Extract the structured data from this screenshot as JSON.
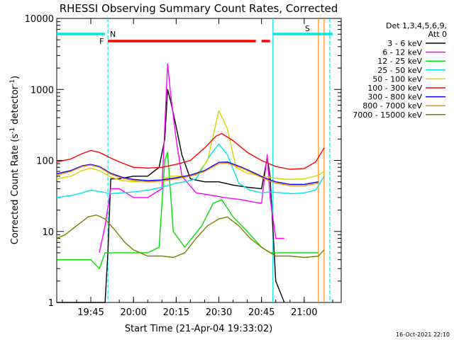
{
  "chart_data": {
    "type": "line",
    "title": "RHESSI Observing Summary Count Rates, Corrected",
    "xlabel": "Start Time (21-Apr-04 19:33:02)",
    "ylabel_main": "Corrected Count Rate (s",
    "ylabel_sup": "-1",
    "ylabel_rest": " detector",
    "ylabel_sup2": "-1",
    "ylabel_end": ")",
    "footer_timestamp": "16-Oct-2021 22:10",
    "y_scale": "log",
    "ylim": [
      1,
      10000
    ],
    "xlim": [
      "19:33:02",
      "21:13:00"
    ],
    "x_ticks": [
      "19:45",
      "20:00",
      "20:15",
      "20:30",
      "20:45",
      "21:00"
    ],
    "y_ticks": [
      "1",
      "10",
      "100",
      "1000",
      "10000"
    ],
    "legend_header": [
      "Det 1,3,4,5,6,9,",
      "Att 0"
    ],
    "flags": {
      "N": {
        "label": "N",
        "color": "#00e5e5"
      },
      "F": {
        "label": "F",
        "color": "#ff0000"
      },
      "S": {
        "label": "S",
        "color": "#ff8c00"
      }
    },
    "series": [
      {
        "name": "3 - 6 keV",
        "color": "#000000",
        "points": [
          [
            "19:33",
            1
          ],
          [
            "19:50",
            1
          ],
          [
            "19:51",
            5
          ],
          [
            "19:52",
            55
          ],
          [
            "19:55",
            55
          ],
          [
            "20:00",
            60
          ],
          [
            "20:05",
            60
          ],
          [
            "20:09",
            80
          ],
          [
            "20:11",
            200
          ],
          [
            "20:12",
            1000
          ],
          [
            "20:13",
            700
          ],
          [
            "20:15",
            300
          ],
          [
            "20:17",
            120
          ],
          [
            "20:20",
            55
          ],
          [
            "20:25",
            50
          ],
          [
            "20:30",
            50
          ],
          [
            "20:35",
            45
          ],
          [
            "20:40",
            42
          ],
          [
            "20:45",
            40
          ],
          [
            "20:47",
            110
          ],
          [
            "20:48",
            60
          ],
          [
            "20:50",
            2
          ],
          [
            "20:53",
            1
          ]
        ]
      },
      {
        "name": "6 - 12 keV",
        "color": "#ff00ff",
        "points": [
          [
            "19:48",
            5
          ],
          [
            "19:50",
            12
          ],
          [
            "19:52",
            40
          ],
          [
            "19:55",
            40
          ],
          [
            "20:00",
            30
          ],
          [
            "20:05",
            30
          ],
          [
            "20:10",
            40
          ],
          [
            "20:12",
            2300
          ],
          [
            "20:13",
            900
          ],
          [
            "20:15",
            200
          ],
          [
            "20:17",
            60
          ],
          [
            "20:22",
            35
          ],
          [
            "20:28",
            32
          ],
          [
            "20:32",
            30
          ],
          [
            "20:38",
            28
          ],
          [
            "20:42",
            26
          ],
          [
            "20:45",
            25
          ],
          [
            "20:47",
            120
          ],
          [
            "20:48",
            30
          ],
          [
            "20:50",
            8
          ],
          [
            "20:53",
            8
          ]
        ]
      },
      {
        "name": "12 - 25 keV",
        "color": "#00e000",
        "points": [
          [
            "19:33",
            4
          ],
          [
            "19:38",
            4
          ],
          [
            "19:42",
            4
          ],
          [
            "19:45",
            4
          ],
          [
            "19:48",
            3
          ],
          [
            "19:50",
            5
          ],
          [
            "19:55",
            5
          ],
          [
            "20:00",
            5
          ],
          [
            "20:05",
            5
          ],
          [
            "20:09",
            6
          ],
          [
            "20:11",
            100
          ],
          [
            "20:12",
            130
          ],
          [
            "20:14",
            10
          ],
          [
            "20:18",
            6
          ],
          [
            "20:24",
            12
          ],
          [
            "20:28",
            25
          ],
          [
            "20:31",
            28
          ],
          [
            "20:35",
            16
          ],
          [
            "20:40",
            10
          ],
          [
            "20:45",
            6
          ],
          [
            "20:48",
            5
          ],
          [
            "20:52",
            5
          ],
          [
            "21:00",
            5
          ],
          [
            "21:05",
            5
          ]
        ]
      },
      {
        "name": "25 - 50 keV",
        "color": "#00e5e5",
        "points": [
          [
            "19:33",
            30
          ],
          [
            "19:38",
            32
          ],
          [
            "19:42",
            35
          ],
          [
            "19:45",
            38
          ],
          [
            "19:49",
            36
          ],
          [
            "19:52",
            34
          ],
          [
            "19:56",
            35
          ],
          [
            "20:00",
            36
          ],
          [
            "20:05",
            38
          ],
          [
            "20:10",
            42
          ],
          [
            "20:15",
            48
          ],
          [
            "20:18",
            50
          ],
          [
            "20:22",
            55
          ],
          [
            "20:27",
            120
          ],
          [
            "20:30",
            170
          ],
          [
            "20:33",
            120
          ],
          [
            "20:37",
            48
          ],
          [
            "20:41",
            38
          ],
          [
            "20:45",
            35
          ],
          [
            "20:48",
            36
          ],
          [
            "20:52",
            35
          ],
          [
            "20:56",
            34
          ],
          [
            "21:00",
            35
          ],
          [
            "21:04",
            38
          ],
          [
            "21:07",
            60
          ]
        ]
      },
      {
        "name": "50 - 100 keV",
        "color": "#d6d600",
        "points": [
          [
            "19:33",
            55
          ],
          [
            "19:38",
            60
          ],
          [
            "19:42",
            72
          ],
          [
            "19:45",
            78
          ],
          [
            "19:48",
            72
          ],
          [
            "19:52",
            58
          ],
          [
            "19:56",
            52
          ],
          [
            "20:00",
            50
          ],
          [
            "20:05",
            51
          ],
          [
            "20:10",
            53
          ],
          [
            "20:13",
            60
          ],
          [
            "20:18",
            60
          ],
          [
            "20:22",
            62
          ],
          [
            "20:26",
            100
          ],
          [
            "20:30",
            500
          ],
          [
            "20:33",
            280
          ],
          [
            "20:36",
            80
          ],
          [
            "20:40",
            66
          ],
          [
            "20:45",
            60
          ],
          [
            "20:50",
            56
          ],
          [
            "20:55",
            54
          ],
          [
            "21:00",
            55
          ],
          [
            "21:05",
            62
          ],
          [
            "21:07",
            70
          ]
        ]
      },
      {
        "name": "100 - 300 keV",
        "color": "#ff0000",
        "points": [
          [
            "19:33",
            95
          ],
          [
            "19:38",
            105
          ],
          [
            "19:42",
            125
          ],
          [
            "19:45",
            138
          ],
          [
            "19:48",
            130
          ],
          [
            "19:52",
            108
          ],
          [
            "19:56",
            92
          ],
          [
            "20:00",
            80
          ],
          [
            "20:05",
            78
          ],
          [
            "20:10",
            80
          ],
          [
            "20:15",
            88
          ],
          [
            "20:20",
            100
          ],
          [
            "20:25",
            150
          ],
          [
            "20:29",
            220
          ],
          [
            "20:31",
            240
          ],
          [
            "20:35",
            190
          ],
          [
            "20:40",
            130
          ],
          [
            "20:45",
            100
          ],
          [
            "20:50",
            82
          ],
          [
            "20:55",
            75
          ],
          [
            "21:00",
            77
          ],
          [
            "21:04",
            95
          ],
          [
            "21:07",
            150
          ]
        ]
      },
      {
        "name": "300 - 800 keV",
        "color": "#0000ff",
        "points": [
          [
            "19:33",
            65
          ],
          [
            "19:38",
            72
          ],
          [
            "19:42",
            84
          ],
          [
            "19:45",
            88
          ],
          [
            "19:48",
            82
          ],
          [
            "19:52",
            66
          ],
          [
            "19:56",
            58
          ],
          [
            "20:00",
            54
          ],
          [
            "20:05",
            52
          ],
          [
            "20:10",
            53
          ],
          [
            "20:15",
            57
          ],
          [
            "20:20",
            62
          ],
          [
            "20:25",
            72
          ],
          [
            "20:30",
            94
          ],
          [
            "20:33",
            95
          ],
          [
            "20:38",
            80
          ],
          [
            "20:42",
            68
          ],
          [
            "20:46",
            57
          ],
          [
            "20:50",
            50
          ],
          [
            "20:55",
            46
          ],
          [
            "21:00",
            46
          ],
          [
            "21:05",
            50
          ]
        ]
      },
      {
        "name": "800 - 7000 keV",
        "color": "#ff8c00",
        "points": [
          [
            "19:33",
            62
          ],
          [
            "19:38",
            70
          ],
          [
            "19:42",
            82
          ],
          [
            "19:45",
            86
          ],
          [
            "19:48",
            80
          ],
          [
            "19:52",
            64
          ],
          [
            "19:56",
            56
          ],
          [
            "20:00",
            52
          ],
          [
            "20:05",
            50
          ],
          [
            "20:10",
            51
          ],
          [
            "20:15",
            55
          ],
          [
            "20:20",
            60
          ],
          [
            "20:25",
            70
          ],
          [
            "20:30",
            90
          ],
          [
            "20:33",
            92
          ],
          [
            "20:38",
            78
          ],
          [
            "20:42",
            66
          ],
          [
            "20:46",
            55
          ],
          [
            "20:50",
            48
          ],
          [
            "20:55",
            44
          ],
          [
            "21:00",
            44
          ],
          [
            "21:05",
            48
          ]
        ]
      },
      {
        "name": "7000 - 15000 keV",
        "color": "#7f7f00",
        "points": [
          [
            "19:33",
            8
          ],
          [
            "19:36",
            9
          ],
          [
            "19:40",
            12
          ],
          [
            "19:44",
            16
          ],
          [
            "19:47",
            17
          ],
          [
            "19:50",
            15
          ],
          [
            "19:53",
            11
          ],
          [
            "19:57",
            7
          ],
          [
            "20:00",
            5.5
          ],
          [
            "20:05",
            4.5
          ],
          [
            "20:10",
            4.5
          ],
          [
            "20:14",
            4.3
          ],
          [
            "20:18",
            5
          ],
          [
            "20:22",
            8
          ],
          [
            "20:26",
            12
          ],
          [
            "20:30",
            15
          ],
          [
            "20:33",
            16
          ],
          [
            "20:37",
            12
          ],
          [
            "20:41",
            8
          ],
          [
            "20:45",
            6
          ],
          [
            "20:50",
            4.5
          ],
          [
            "20:55",
            4.5
          ],
          [
            "21:00",
            4.3
          ],
          [
            "21:05",
            4.5
          ],
          [
            "21:07",
            5.5
          ]
        ]
      }
    ],
    "flag_intervals": {
      "N": [
        [
          "19:33",
          "19:50"
        ],
        [
          "20:49",
          "21:10"
        ]
      ],
      "F": [
        [
          "19:51",
          "20:43"
        ],
        [
          "20:45",
          "20:48"
        ]
      ],
      "S": [
        [
          "21:05",
          "21:05"
        ]
      ]
    },
    "markers": [
      {
        "time": "19:51",
        "color": "#00e5e5",
        "style": "dashed"
      },
      {
        "time": "20:49",
        "color": "#00e5e5",
        "style": "solid"
      },
      {
        "time": "21:05",
        "color": "#ff8c00",
        "style": "solid"
      },
      {
        "time": "21:07",
        "color": "#ff8c00",
        "style": "solid"
      },
      {
        "time": "21:09",
        "color": "#00e5e5",
        "style": "dashed"
      }
    ]
  }
}
